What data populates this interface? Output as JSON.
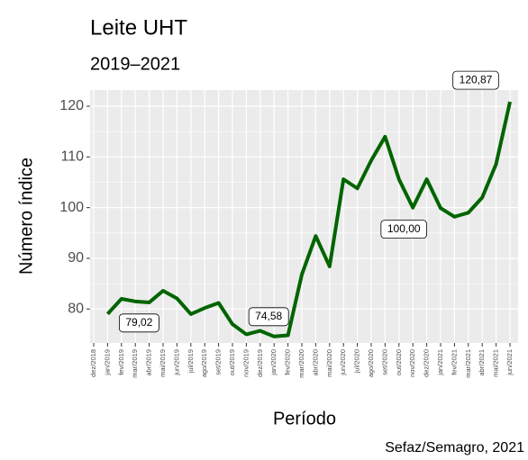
{
  "chart_data": {
    "type": "line",
    "title": "Leite UHT",
    "subtitle": "2019–2021",
    "x_label": "Período",
    "y_label": "Número índice",
    "caption": "Sefaz/Semagro, 2021",
    "categories": [
      "dez/2018",
      "jan/2019",
      "fev/2019",
      "mar/2019",
      "abr/2019",
      "mai/2019",
      "jun/2019",
      "jul/2019",
      "ago/2019",
      "set/2019",
      "out/2019",
      "nov/2019",
      "dez/2019",
      "jan/2020",
      "fev/2020",
      "mar/2020",
      "abr/2020",
      "mai/2020",
      "jun/2020",
      "jul/2020",
      "ago/2020",
      "set/2020",
      "out/2020",
      "nov/2020",
      "dez/2020",
      "jan/2021",
      "fev/2021",
      "mar/2021",
      "abr/2021",
      "mai/2021",
      "jun/2021"
    ],
    "values": [
      null,
      79.02,
      82.0,
      81.5,
      81.3,
      83.6,
      82.1,
      79.0,
      80.2,
      81.2,
      77.0,
      75.0,
      75.7,
      74.58,
      74.8,
      86.8,
      94.4,
      88.4,
      105.6,
      103.8,
      109.3,
      114.0,
      105.6,
      100.0,
      105.6,
      99.9,
      98.2,
      99.0,
      102.0,
      108.6,
      120.87
    ],
    "value_labels": [
      null,
      "79,02",
      null,
      null,
      null,
      null,
      null,
      null,
      null,
      null,
      null,
      null,
      null,
      "74,58",
      null,
      null,
      null,
      null,
      null,
      null,
      null,
      null,
      null,
      "100,00",
      null,
      null,
      null,
      null,
      null,
      null,
      "120,87"
    ],
    "color": "#006400",
    "ylim": [
      73.3,
      123.2
    ],
    "yticks": [
      80,
      90,
      100,
      110,
      120
    ],
    "grid": true
  }
}
